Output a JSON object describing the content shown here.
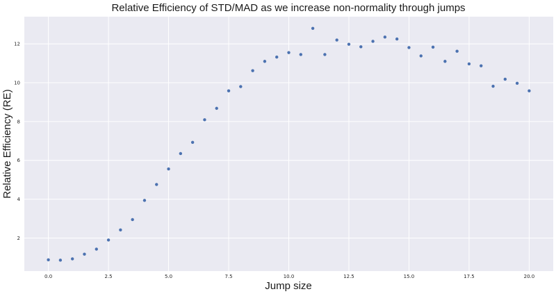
{
  "chart_data": {
    "type": "scatter",
    "title": "Relative Efficiency of STD/MAD as we increase non-normality through jumps",
    "xlabel": "Jump size",
    "ylabel": "Relative Efficiency (RE)",
    "xlim": [
      -1.0,
      21.0
    ],
    "ylim": [
      0.3,
      13.4
    ],
    "xticks": [
      "0.0",
      "2.5",
      "5.0",
      "7.5",
      "10.0",
      "12.5",
      "15.0",
      "17.5",
      "20.0"
    ],
    "yticks": [
      "2",
      "4",
      "6",
      "8",
      "10",
      "12"
    ],
    "grid": true,
    "colors": {
      "background": "#eaeaf2",
      "grid": "#ffffff",
      "point": "#4c72b0"
    },
    "x": [
      0.0,
      0.5,
      1.0,
      1.5,
      2.0,
      2.5,
      3.0,
      3.5,
      4.0,
      4.5,
      5.0,
      5.5,
      6.0,
      6.5,
      7.0,
      7.5,
      8.0,
      8.5,
      9.0,
      9.5,
      10.0,
      10.5,
      11.0,
      11.5,
      12.0,
      12.5,
      13.0,
      13.5,
      14.0,
      14.5,
      15.0,
      15.5,
      16.0,
      16.5,
      17.0,
      17.5,
      18.0,
      18.5,
      19.0,
      19.5,
      20.0
    ],
    "y": [
      0.88,
      0.86,
      0.93,
      1.17,
      1.43,
      1.9,
      2.42,
      2.95,
      3.94,
      4.76,
      5.56,
      6.35,
      6.93,
      8.09,
      8.68,
      9.58,
      9.8,
      10.62,
      11.1,
      11.32,
      11.55,
      11.45,
      12.8,
      11.45,
      12.2,
      11.98,
      11.85,
      12.13,
      12.35,
      12.25,
      11.81,
      11.38,
      11.83,
      11.1,
      11.62,
      10.97,
      10.87,
      9.82,
      10.18,
      9.97,
      9.58
    ]
  }
}
